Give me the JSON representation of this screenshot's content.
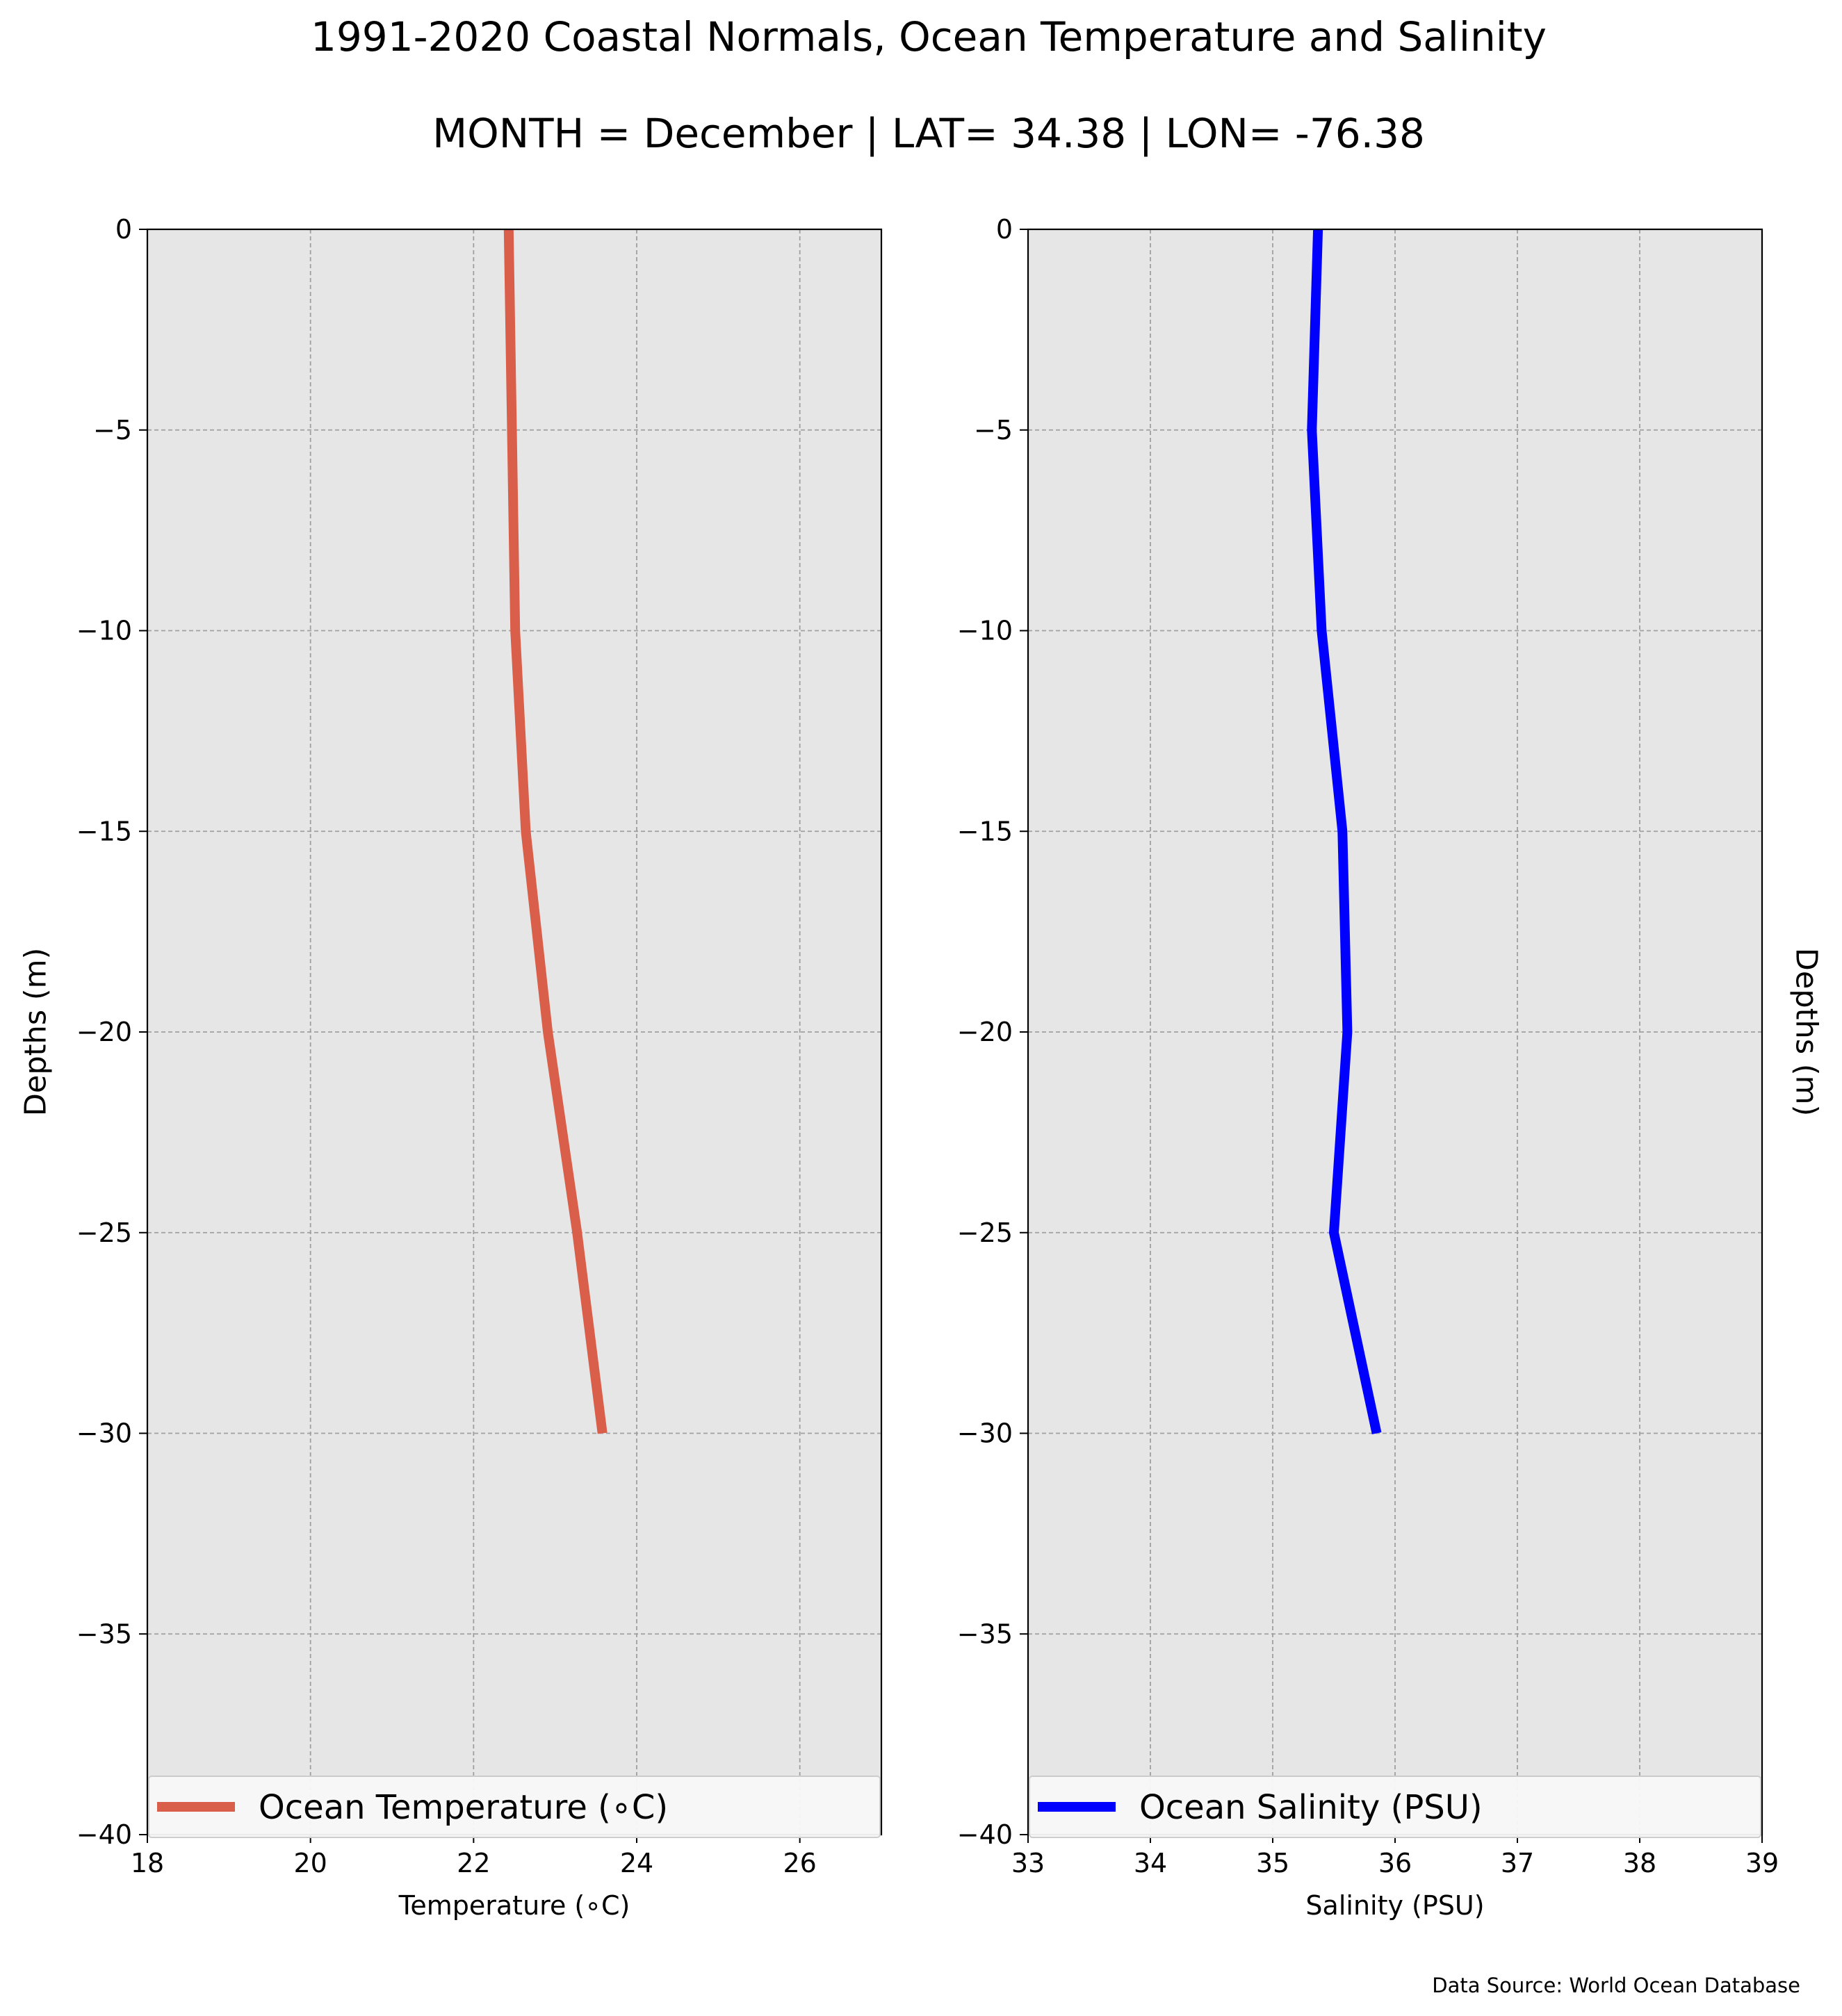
{
  "figure": {
    "title_line1": "1991-2020 Coastal Normals, Ocean Temperature and Salinity",
    "title_line2": "MONTH = December | LAT= 34.38 | LON= -76.38",
    "source": "Data Source: World Ocean Database"
  },
  "colors": {
    "background": "#ffffff",
    "plot_background": "#e6e6e6",
    "grid": "#a0a0a0",
    "temperature_line": "#d95f4b",
    "salinity_line": "#0000ff"
  },
  "chart_data": [
    {
      "type": "line",
      "orientation": "vertical-profile",
      "xlabel": "Temperature ($^\\circ$C)",
      "xlabel_display": "Temperature (∘C)",
      "ylabel": "Depths (m)",
      "ylabel_side": "left",
      "xlim": [
        18,
        27
      ],
      "ylim": [
        -40,
        0
      ],
      "xticks": [
        18,
        20,
        22,
        24,
        26
      ],
      "yticks": [
        0,
        -5,
        -10,
        -15,
        -20,
        -25,
        -30,
        -35,
        -40
      ],
      "yticklabels": [
        "0",
        "−5",
        "−10",
        "−15",
        "−20",
        "−25",
        "−30",
        "−35",
        "−40"
      ],
      "grid": true,
      "legend_position": "bottom",
      "series": [
        {
          "name": "Ocean Temperature (∘C)",
          "color": "#d95f4b",
          "x": [
            22.43,
            22.47,
            22.51,
            22.64,
            22.91,
            23.27,
            23.58
          ],
          "y": [
            0,
            -5,
            -10,
            -15,
            -20,
            -25,
            -30
          ]
        }
      ]
    },
    {
      "type": "line",
      "orientation": "vertical-profile",
      "xlabel": "Salinity (PSU)",
      "ylabel": "Depths (m)",
      "ylabel_side": "right",
      "xlim": [
        33,
        39
      ],
      "ylim": [
        -40,
        0
      ],
      "xticks": [
        33,
        34,
        35,
        36,
        37,
        38,
        39
      ],
      "yticks": [
        0,
        -5,
        -10,
        -15,
        -20,
        -25,
        -30,
        -35,
        -40
      ],
      "yticklabels": [
        "0",
        "−5",
        "−10",
        "−15",
        "−20",
        "−25",
        "−30",
        "−35",
        "−40"
      ],
      "grid": true,
      "legend_position": "bottom",
      "series": [
        {
          "name": "Ocean Salinity (PSU)",
          "color": "#0000ff",
          "x": [
            35.37,
            35.32,
            35.4,
            35.57,
            35.61,
            35.5,
            35.85
          ],
          "y": [
            0,
            -5,
            -10,
            -15,
            -20,
            -25,
            -30
          ]
        }
      ]
    }
  ]
}
